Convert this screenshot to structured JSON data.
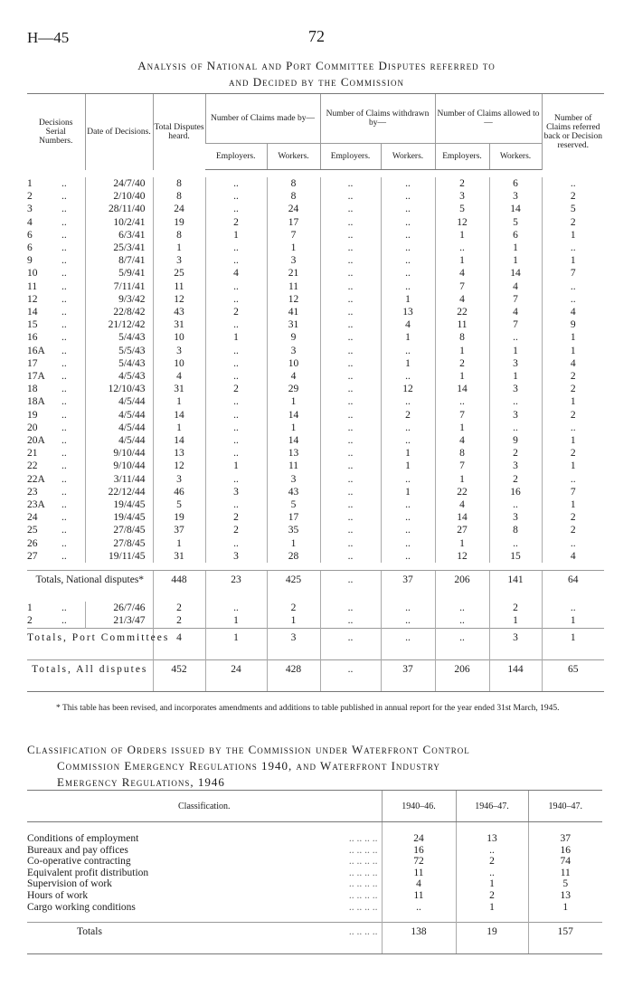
{
  "header": {
    "page_id": "H—45",
    "page_number": "72"
  },
  "table1": {
    "title_line1": "Analysis of National and Port Committee Disputes referred to",
    "title_line2": "and Decided by the Commission",
    "headers": {
      "serial": "Decisions Serial Numbers.",
      "date": "Date of Decisions.",
      "total": "Total Disputes heard.",
      "made_by": "Number of Claims made by—",
      "withdrawn_by": "Number of Claims withdrawn by—",
      "allowed_to": "Number of Claims allowed to—",
      "employers": "Employers.",
      "workers": "Workers.",
      "reserved": "Number of Claims referred back or Decision reserved."
    },
    "national_rows": [
      [
        "1",
        "..",
        "24/7/40",
        "8",
        "..",
        "8",
        "..",
        "..",
        "2",
        "6",
        ".."
      ],
      [
        "2",
        "..",
        "2/10/40",
        "8",
        "..",
        "8",
        "..",
        "..",
        "3",
        "3",
        "2"
      ],
      [
        "3",
        "..",
        "28/11/40",
        "24",
        "..",
        "24",
        "..",
        "..",
        "5",
        "14",
        "5"
      ],
      [
        "4",
        "..",
        "10/2/41",
        "19",
        "2",
        "17",
        "..",
        "..",
        "12",
        "5",
        "2"
      ],
      [
        "6",
        "..",
        "6/3/41",
        "8",
        "1",
        "7",
        "..",
        "..",
        "1",
        "6",
        "1"
      ],
      [
        "6",
        "..",
        "25/3/41",
        "1",
        "..",
        "1",
        "..",
        "..",
        "..",
        "1",
        ".."
      ],
      [
        "9",
        "..",
        "8/7/41",
        "3",
        "..",
        "3",
        "..",
        "..",
        "1",
        "1",
        "1"
      ],
      [
        "10",
        "..",
        "5/9/41",
        "25",
        "4",
        "21",
        "..",
        "..",
        "4",
        "14",
        "7"
      ],
      [
        "11",
        "..",
        "7/11/41",
        "11",
        "..",
        "11",
        "..",
        "..",
        "7",
        "4",
        ".."
      ],
      [
        "12",
        "..",
        "9/3/42",
        "12",
        "..",
        "12",
        "..",
        "1",
        "4",
        "7",
        ".."
      ],
      [
        "14",
        "..",
        "22/8/42",
        "43",
        "2",
        "41",
        "..",
        "13",
        "22",
        "4",
        "4"
      ],
      [
        "15",
        "..",
        "21/12/42",
        "31",
        "..",
        "31",
        "..",
        "4",
        "11",
        "7",
        "9"
      ],
      [
        "16",
        "..",
        "5/4/43",
        "10",
        "1",
        "9",
        "..",
        "1",
        "8",
        "..",
        "1"
      ],
      [
        "16A",
        "..",
        "5/5/43",
        "3",
        "..",
        "3",
        "..",
        "..",
        "1",
        "1",
        "1"
      ],
      [
        "17",
        "..",
        "5/4/43",
        "10",
        "..",
        "10",
        "..",
        "1",
        "2",
        "3",
        "4"
      ],
      [
        "17A",
        "..",
        "4/5/43",
        "4",
        "..",
        "4",
        "..",
        "..",
        "1",
        "1",
        "2"
      ],
      [
        "18",
        "..",
        "12/10/43",
        "31",
        "2",
        "29",
        "..",
        "12",
        "14",
        "3",
        "2"
      ],
      [
        "18A",
        "..",
        "4/5/44",
        "1",
        "..",
        "1",
        "..",
        "..",
        "..",
        "..",
        "1"
      ],
      [
        "19",
        "..",
        "4/5/44",
        "14",
        "..",
        "14",
        "..",
        "2",
        "7",
        "3",
        "2"
      ],
      [
        "20",
        "..",
        "4/5/44",
        "1",
        "..",
        "1",
        "..",
        "..",
        "1",
        "..",
        ".."
      ],
      [
        "20A",
        "..",
        "4/5/44",
        "14",
        "..",
        "14",
        "..",
        "..",
        "4",
        "9",
        "1"
      ],
      [
        "21",
        "..",
        "9/10/44",
        "13",
        "..",
        "13",
        "..",
        "1",
        "8",
        "2",
        "2"
      ],
      [
        "22",
        "..",
        "9/10/44",
        "12",
        "1",
        "11",
        "..",
        "1",
        "7",
        "3",
        "1"
      ],
      [
        "22A",
        "..",
        "3/11/44",
        "3",
        "..",
        "3",
        "..",
        "..",
        "1",
        "2",
        ".."
      ],
      [
        "23",
        "..",
        "22/12/44",
        "46",
        "3",
        "43",
        "..",
        "1",
        "22",
        "16",
        "7"
      ],
      [
        "23A",
        "..",
        "19/4/45",
        "5",
        "..",
        "5",
        "..",
        "..",
        "4",
        "..",
        "1"
      ],
      [
        "24",
        "..",
        "19/4/45",
        "19",
        "2",
        "17",
        "..",
        "..",
        "14",
        "3",
        "2"
      ],
      [
        "25",
        "..",
        "27/8/45",
        "37",
        "2",
        "35",
        "..",
        "..",
        "27",
        "8",
        "2"
      ],
      [
        "26",
        "..",
        "27/8/45",
        "1",
        "..",
        "1",
        "..",
        "..",
        "1",
        "..",
        ".."
      ],
      [
        "27",
        "..",
        "19/11/45",
        "31",
        "3",
        "28",
        "..",
        "..",
        "12",
        "15",
        "4"
      ]
    ],
    "totals_national": {
      "label": "Totals, National disputes*",
      "values": [
        "448",
        "23",
        "425",
        "..",
        "37",
        "206",
        "141",
        "64"
      ]
    },
    "port_rows": [
      [
        "1",
        "..",
        "26/7/46",
        "2",
        "..",
        "2",
        "..",
        "..",
        "..",
        "2",
        ".."
      ],
      [
        "2",
        "..",
        "21/3/47",
        "2",
        "1",
        "1",
        "..",
        "..",
        "..",
        "1",
        "1"
      ]
    ],
    "totals_port": {
      "label": "Totals, Port Committees",
      "values": [
        "4",
        "1",
        "3",
        "..",
        "..",
        "..",
        "3",
        "1"
      ]
    },
    "totals_all": {
      "label": "Totals, All disputes",
      "values": [
        "452",
        "24",
        "428",
        "..",
        "37",
        "206",
        "144",
        "65"
      ]
    },
    "footnote": "* This table has been revised, and incorporates amendments and additions to table published in annual report for the year ended 31st March, 1945."
  },
  "table2": {
    "title_lines": [
      "Classification of Orders issued by the Commission under Waterfront Control",
      "Commission Emergency Regulations 1940, and Waterfront Industry",
      "Emergency Regulations, 1946"
    ],
    "headers": [
      "Classification.",
      "1940–46.",
      "1946–47.",
      "1940–47."
    ],
    "leader": "..      ..      ..      ..",
    "rows": [
      [
        "Conditions of employment",
        "24",
        "13",
        "37"
      ],
      [
        "Bureaux and pay offices",
        "16",
        "..",
        "16"
      ],
      [
        "Co-operative contracting",
        "72",
        "2",
        "74"
      ],
      [
        "Equivalent profit distribution",
        "11",
        "..",
        "11"
      ],
      [
        "Supervision of work",
        "4",
        "1",
        "5"
      ],
      [
        "Hours of work",
        "11",
        "2",
        "13"
      ],
      [
        "Cargo working conditions",
        "..",
        "1",
        "1"
      ]
    ],
    "totals": [
      "Totals",
      "138",
      "19",
      "157"
    ]
  }
}
